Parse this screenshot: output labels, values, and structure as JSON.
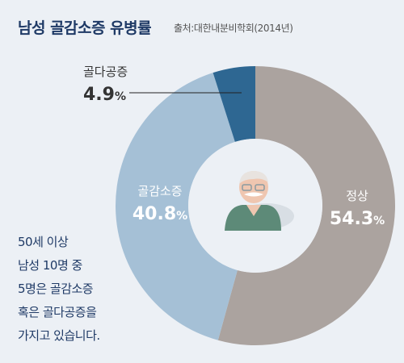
{
  "header": {
    "title": "남성 골감소증 유병률",
    "source": "출처:대한내분비학회(2014년)"
  },
  "note": {
    "lines": [
      "50세 이상",
      "남성 10명 중",
      "5명은 골감소증",
      "혹은 골다공증을",
      "가지고 있습니다."
    ]
  },
  "center_icon": "elderly-man-icon",
  "colors": {
    "background": "#ecf0f5",
    "accent": "#1f3a66"
  },
  "chart_data": {
    "type": "pie",
    "title": "남성 골감소증 유병률",
    "unit": "%",
    "slices": [
      {
        "label": "정상",
        "value": 54.3,
        "display": "54.3",
        "color": "#aba39f"
      },
      {
        "label": "골감소증",
        "value": 40.8,
        "display": "40.8",
        "color": "#a5c0d6"
      },
      {
        "label": "골다공증",
        "value": 4.9,
        "display": "4.9",
        "color": "#2e6792"
      }
    ]
  }
}
